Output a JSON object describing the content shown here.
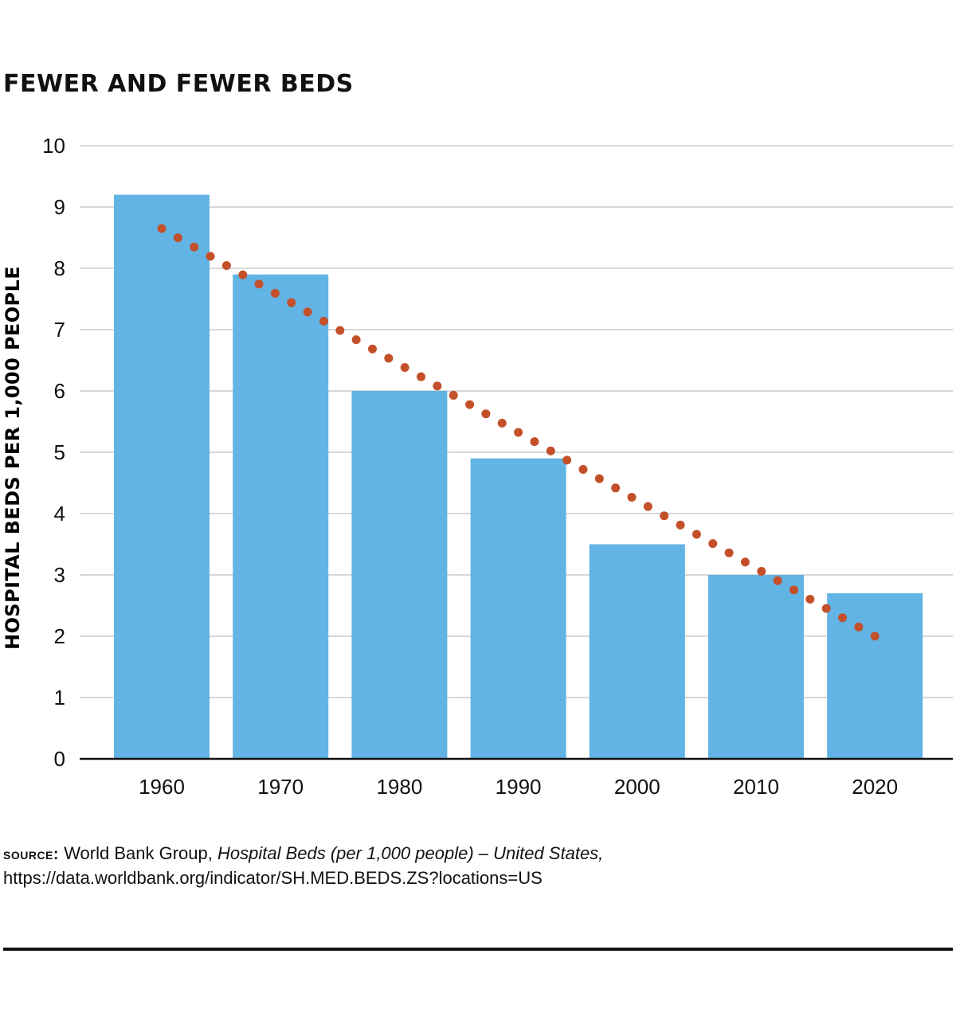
{
  "colors": {
    "bar": "#62b4e4",
    "trend": "#c4502a",
    "grid": "#cccccc",
    "axis": "#111111"
  },
  "chart_data": {
    "type": "bar",
    "title": "FEWER AND FEWER BEDS",
    "ylabel": "HOSPITAL BEDS PER 1,000 PEOPLE",
    "xlabel": "",
    "categories": [
      "1960",
      "1970",
      "1980",
      "1990",
      "2000",
      "2010",
      "2020"
    ],
    "values": [
      9.2,
      7.9,
      6.0,
      4.9,
      3.5,
      3.0,
      2.7
    ],
    "yticks": [
      "0",
      "1",
      "2",
      "3",
      "4",
      "5",
      "6",
      "7",
      "8",
      "9",
      "10"
    ],
    "ylim": [
      0,
      10
    ],
    "grid": true,
    "legend": "none",
    "trendline": {
      "style": "dotted",
      "start": {
        "category": "1960",
        "value": 8.65
      },
      "end": {
        "category": "2020",
        "value": 2.0
      }
    }
  },
  "source": {
    "label": "SOURCE:",
    "org": "World Bank Group,",
    "title": "Hospital Beds (per 1,000 people) – United States,",
    "url": "https://data.worldbank.org/indicator/SH.MED.BEDS.ZS?locations=US"
  }
}
